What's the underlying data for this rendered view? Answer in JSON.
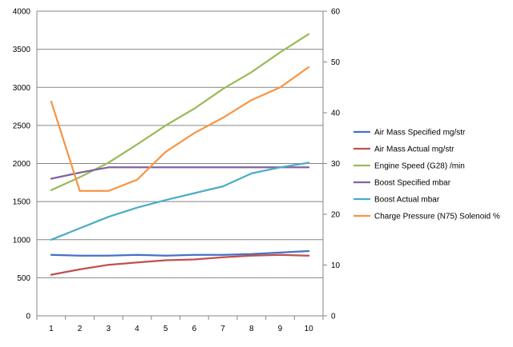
{
  "chart_data": {
    "type": "line",
    "title": "",
    "xlabel": "",
    "ylabel": "",
    "y2label": "",
    "categories": [
      "1",
      "2",
      "3",
      "4",
      "5",
      "6",
      "7",
      "8",
      "9",
      "10"
    ],
    "ylim": [
      0,
      4000
    ],
    "y_ticks": [
      0,
      500,
      1000,
      1500,
      2000,
      2500,
      3000,
      3500,
      4000
    ],
    "y2lim": [
      0,
      60
    ],
    "y2_ticks": [
      0,
      10,
      20,
      30,
      40,
      50,
      60
    ],
    "grid": "horizontal",
    "legend_position": "right",
    "series": [
      {
        "name": "Air Mass Specified  mg/str",
        "color": "#4472C4",
        "axis": "left",
        "values": [
          800,
          790,
          790,
          800,
          790,
          800,
          800,
          810,
          830,
          850
        ]
      },
      {
        "name": "Air Mass Actual  mg/str",
        "color": "#C0504D",
        "axis": "left",
        "values": [
          540,
          610,
          670,
          700,
          730,
          740,
          770,
          790,
          800,
          790
        ]
      },
      {
        "name": "Engine Speed (G28)  /min",
        "color": "#9BBB59",
        "axis": "left",
        "values": [
          1650,
          1820,
          2010,
          2250,
          2500,
          2720,
          2980,
          3200,
          3460,
          3700
        ]
      },
      {
        "name": "Boost Specified  mbar",
        "color": "#8064A2",
        "axis": "left",
        "values": [
          1800,
          1880,
          1950,
          1950,
          1950,
          1950,
          1950,
          1950,
          1950,
          1950
        ]
      },
      {
        "name": "Boost Actual  mbar",
        "color": "#4BACC6",
        "axis": "left",
        "values": [
          1000,
          1150,
          1300,
          1420,
          1520,
          1610,
          1700,
          1870,
          1950,
          2010
        ]
      },
      {
        "name": "Charge Pressure (N75) Solenoid  %",
        "color": "#F79646",
        "axis": "right",
        "values": [
          42.2,
          24.6,
          24.6,
          26.8,
          32.3,
          36.0,
          39.0,
          42.5,
          45.0,
          49.0
        ]
      }
    ]
  }
}
